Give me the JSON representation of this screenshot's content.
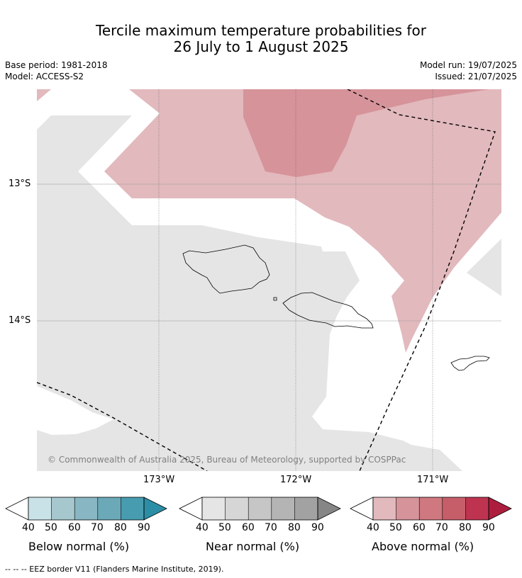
{
  "title_line1": "Tercile maximum temperature probabilities for",
  "title_line2": "26 July to 1 August 2025",
  "base_period": "Base period: 1981-2018",
  "model": "Model: ACCESS-S2",
  "model_run": "Model run: 19/07/2025",
  "issued": "Issued: 21/07/2025",
  "lat_ticks": [
    "13°S",
    "14°S"
  ],
  "lon_ticks": [
    "173°W",
    "172°W",
    "171°W"
  ],
  "copyright": "© Commonwealth of Australia 2025, Bureau of Meteorology, supported by COSPPac",
  "colorbars": [
    {
      "title": "Below normal (%)",
      "labels": [
        "40",
        "50",
        "60",
        "70",
        "80",
        "90"
      ],
      "colors": [
        "#c9e2e8",
        "#a6c7ce",
        "#88b6c2",
        "#6ba9b9",
        "#479cb0",
        "#2b8ea6"
      ]
    },
    {
      "title": "Near normal (%)",
      "labels": [
        "40",
        "50",
        "60",
        "70",
        "80",
        "90"
      ],
      "colors": [
        "#e5e5e5",
        "#d6d6d6",
        "#c6c6c6",
        "#b4b4b4",
        "#a2a2a2",
        "#868686"
      ]
    },
    {
      "title": "Above normal (%)",
      "labels": [
        "40",
        "50",
        "60",
        "70",
        "80",
        "90"
      ],
      "colors": [
        "#e2b9bd",
        "#d6939a",
        "#cf7880",
        "#c65e69",
        "#be3450",
        "#ad1d3d"
      ]
    }
  ],
  "footnote": "--  --  -- EEZ border V11 (Flanders Marine Institute, 2019).",
  "map_colors": {
    "near_normal": "#e5e5e5",
    "above_40": "#e2b9bd",
    "above_50": "#d6939a"
  }
}
